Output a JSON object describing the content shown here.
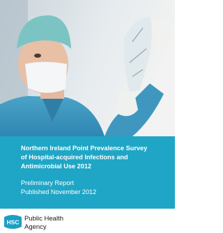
{
  "cover": {
    "title_lines": [
      "Northern Ireland Point Prevalence Survey",
      "of Hospital-acquired Infections and",
      "Antimicrobial Use 2012"
    ],
    "subtitle_lines": [
      "Preliminary Report",
      "Published November 2012"
    ]
  },
  "logo": {
    "mark": "HSC",
    "name_lines": [
      "Public Health",
      "Agency"
    ]
  }
}
